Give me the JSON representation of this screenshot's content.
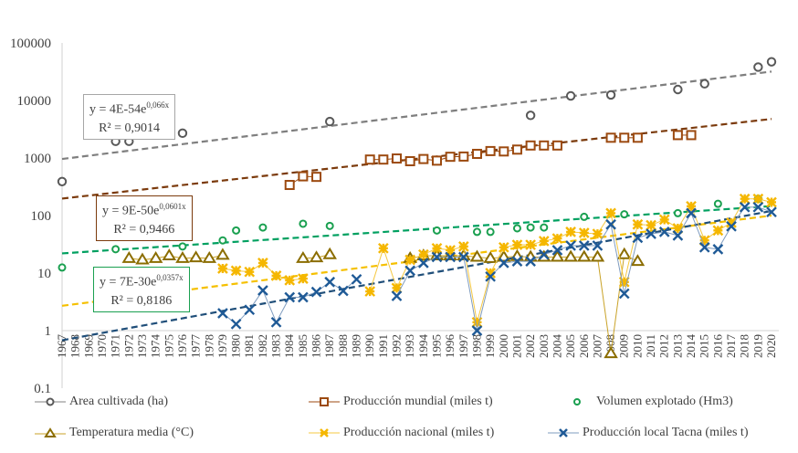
{
  "chart_data": {
    "type": "line",
    "title": "",
    "xlabel": "",
    "ylabel": "",
    "yscale": "log",
    "ylim": [
      0.1,
      100000
    ],
    "y_ticks": [
      "100000",
      "10000",
      "1000",
      "100",
      "10",
      "1",
      "0.1"
    ],
    "x": [
      1967,
      1968,
      1969,
      1970,
      1971,
      1972,
      1973,
      1974,
      1975,
      1976,
      1977,
      1978,
      1979,
      1980,
      1981,
      1982,
      1983,
      1984,
      1985,
      1986,
      1987,
      1988,
      1989,
      1990,
      1991,
      1992,
      1993,
      1994,
      1995,
      1996,
      1997,
      1998,
      1999,
      2000,
      2001,
      2002,
      2003,
      2004,
      2005,
      2006,
      2007,
      2008,
      2009,
      2010,
      2011,
      2012,
      2013,
      2014,
      2015,
      2016,
      2017,
      2018,
      2019,
      2020
    ],
    "series": [
      {
        "name": "Area cultivada (ha)",
        "color": "#595959",
        "marker": "circle",
        "line": false,
        "points": [
          [
            1967,
            390
          ],
          [
            1971,
            1950
          ],
          [
            1972,
            1950
          ],
          [
            1976,
            2700
          ],
          [
            1987,
            4300
          ],
          [
            2002,
            5500
          ],
          [
            2005,
            12000
          ],
          [
            2008,
            12500
          ],
          [
            2013,
            15500
          ],
          [
            2015,
            19500
          ],
          [
            2019,
            38000
          ],
          [
            2020,
            47000
          ]
        ],
        "trend": {
          "a": 4e-54,
          "b": 0.066,
          "label": "y = 4E-54e",
          "exp": "0,066x",
          "r2": "R² = 0,9014",
          "color": "#7f7f7f"
        }
      },
      {
        "name": "Producción mundial (miles t)",
        "color": "#9c4a10",
        "marker": "square",
        "line": true,
        "points": [
          [
            1984,
            340
          ],
          [
            1985,
            480
          ],
          [
            1986,
            470
          ],
          [
            1990,
            940
          ],
          [
            1991,
            940
          ],
          [
            1992,
            980
          ],
          [
            1993,
            880
          ],
          [
            1994,
            960
          ],
          [
            1995,
            900
          ],
          [
            1996,
            1050
          ],
          [
            1997,
            1060
          ],
          [
            1998,
            1180
          ],
          [
            1999,
            1320
          ],
          [
            2000,
            1300
          ],
          [
            2001,
            1400
          ],
          [
            2002,
            1650
          ],
          [
            2003,
            1650
          ],
          [
            2004,
            1650
          ],
          [
            2008,
            2250
          ],
          [
            2009,
            2250
          ],
          [
            2010,
            2250
          ],
          [
            2013,
            2500
          ],
          [
            2014,
            2500
          ]
        ],
        "trend": {
          "a": 9e-50,
          "b": 0.0601,
          "label": "y = 9E-50e",
          "exp": "0,0601x",
          "r2": "R² = 0,9466",
          "color": "#7b3a0c"
        }
      },
      {
        "name": "Volumen explotado (Hm3)",
        "color": "#1aa050",
        "marker": "circle",
        "line": false,
        "points": [
          [
            1967,
            12.5
          ],
          [
            1971,
            26
          ],
          [
            1976,
            29
          ],
          [
            1979,
            37
          ],
          [
            1980,
            55
          ],
          [
            1982,
            62
          ],
          [
            1985,
            72
          ],
          [
            1987,
            66
          ],
          [
            1995,
            55
          ],
          [
            1998,
            52
          ],
          [
            1999,
            52
          ],
          [
            2001,
            60
          ],
          [
            2002,
            62
          ],
          [
            2003,
            62
          ],
          [
            2006,
            95
          ],
          [
            2009,
            105
          ],
          [
            2013,
            110
          ],
          [
            2016,
            160
          ],
          [
            2019,
            195
          ]
        ],
        "trend": {
          "a": 7e-30,
          "b": 0.0357,
          "label": "y = 7E-30e",
          "exp": "0,0357x",
          "r2": "R² = 0,8186",
          "color": "#00a060"
        }
      },
      {
        "name": "Temperatura media (°C)",
        "color": "#8b6d00",
        "marker": "triangle",
        "line": true,
        "points": [
          [
            1972,
            18
          ],
          [
            1973,
            17
          ],
          [
            1974,
            18
          ],
          [
            1975,
            20
          ],
          [
            1976,
            18
          ],
          [
            1977,
            18.5
          ],
          [
            1978,
            18
          ],
          [
            1979,
            20.5
          ],
          [
            1985,
            18
          ],
          [
            1986,
            18.5
          ],
          [
            1987,
            21
          ],
          [
            1993,
            18
          ],
          [
            1994,
            20
          ],
          [
            1995,
            20
          ],
          [
            1996,
            20
          ],
          [
            1997,
            20
          ],
          [
            1998,
            19
          ],
          [
            1999,
            18
          ],
          [
            2000,
            19
          ],
          [
            2001,
            19.5
          ],
          [
            2002,
            19
          ],
          [
            2003,
            19
          ],
          [
            2004,
            19
          ],
          [
            2005,
            19
          ],
          [
            2006,
            19
          ],
          [
            2007,
            19
          ],
          [
            2008,
            0.4
          ],
          [
            2009,
            21
          ],
          [
            2010,
            16
          ]
        ]
      },
      {
        "name": "Producción nacional (miles t)",
        "color": "#f5b700",
        "marker": "star",
        "line": true,
        "points": [
          [
            1979,
            12
          ],
          [
            1980,
            11
          ],
          [
            1981,
            10.5
          ],
          [
            1982,
            15
          ],
          [
            1983,
            9
          ],
          [
            1984,
            7.5
          ],
          [
            1985,
            8
          ],
          [
            1990,
            4.8
          ],
          [
            1991,
            27
          ],
          [
            1992,
            5.5
          ],
          [
            1993,
            17
          ],
          [
            1994,
            21
          ],
          [
            1995,
            27
          ],
          [
            1996,
            25
          ],
          [
            1997,
            29
          ],
          [
            1998,
            1.4
          ],
          [
            1999,
            10
          ],
          [
            2000,
            28
          ],
          [
            2001,
            31
          ],
          [
            2002,
            31
          ],
          [
            2003,
            36
          ],
          [
            2004,
            40
          ],
          [
            2005,
            52
          ],
          [
            2006,
            50
          ],
          [
            2007,
            48
          ],
          [
            2008,
            110
          ],
          [
            2009,
            7
          ],
          [
            2010,
            70
          ],
          [
            2011,
            68
          ],
          [
            2012,
            85
          ],
          [
            2013,
            60
          ],
          [
            2014,
            145
          ],
          [
            2015,
            37
          ],
          [
            2016,
            55
          ],
          [
            2017,
            75
          ],
          [
            2018,
            195
          ],
          [
            2019,
            195
          ],
          [
            2020,
            170
          ]
        ]
      },
      {
        "name": "Producción local Tacna (miles t)",
        "color": "#1f5a96",
        "marker": "x",
        "line": true,
        "points": [
          [
            1979,
            2
          ],
          [
            1980,
            1.3
          ],
          [
            1981,
            2.3
          ],
          [
            1982,
            5
          ],
          [
            1983,
            1.4
          ],
          [
            1984,
            3.8
          ],
          [
            1985,
            3.8
          ],
          [
            1986,
            4.7
          ],
          [
            1987,
            7
          ],
          [
            1988,
            4.9
          ],
          [
            1989,
            7.8
          ],
          [
            1992,
            4
          ],
          [
            1993,
            11
          ],
          [
            1994,
            15
          ],
          [
            1995,
            19
          ],
          [
            1996,
            19
          ],
          [
            1997,
            19
          ],
          [
            1998,
            1.0
          ],
          [
            1999,
            8.7
          ],
          [
            2000,
            15
          ],
          [
            2001,
            16
          ],
          [
            2002,
            16
          ],
          [
            2003,
            21
          ],
          [
            2004,
            25
          ],
          [
            2005,
            30
          ],
          [
            2006,
            30
          ],
          [
            2007,
            30
          ],
          [
            2008,
            70
          ],
          [
            2009,
            4.4
          ],
          [
            2010,
            41
          ],
          [
            2011,
            48
          ],
          [
            2012,
            52
          ],
          [
            2013,
            45
          ],
          [
            2014,
            110
          ],
          [
            2015,
            28
          ],
          [
            2016,
            26
          ],
          [
            2017,
            65
          ],
          [
            2018,
            140
          ],
          [
            2019,
            140
          ],
          [
            2020,
            115
          ]
        ]
      }
    ],
    "legend_position": "bottom"
  },
  "legend": [
    {
      "label": "Area cultivada (ha)",
      "marker": "circle",
      "color": "#595959",
      "line": true
    },
    {
      "label": "Producción mundial (miles t)",
      "marker": "square",
      "color": "#9c4a10",
      "line": true
    },
    {
      "label": "Volumen explotado (Hm3)",
      "marker": "circle",
      "color": "#1aa050",
      "line": false
    },
    {
      "label": "Temperatura media (°C)",
      "marker": "triangle",
      "color": "#8b6d00",
      "line": true
    },
    {
      "label": "Producción nacional (miles t)",
      "marker": "star",
      "color": "#f5b700",
      "line": true
    },
    {
      "label": "Producción local Tacna (miles t)",
      "marker": "x",
      "color": "#1f5a96",
      "line": true
    }
  ]
}
